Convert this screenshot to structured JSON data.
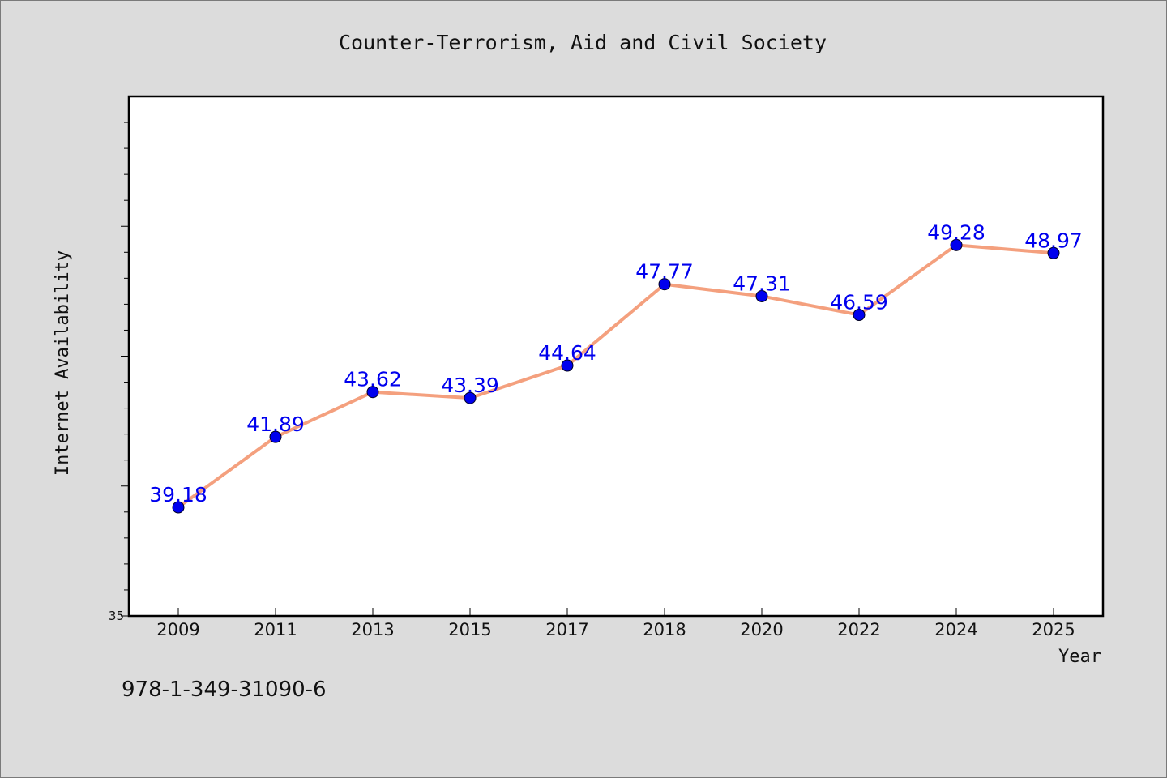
{
  "chart_data": {
    "type": "line",
    "title": "Counter-Terrorism, Aid and Civil Society",
    "xlabel": "Year",
    "ylabel": "Internet Availability",
    "categories": [
      "2009",
      "2011",
      "2013",
      "2015",
      "2017",
      "2018",
      "2020",
      "2022",
      "2024",
      "2025"
    ],
    "series": [
      {
        "values": [
          39.18,
          41.89,
          43.62,
          43.39,
          44.64,
          47.77,
          47.31,
          46.59,
          49.28,
          48.97
        ],
        "data_labels": [
          "39.18",
          "41.89",
          "43.62",
          "43.39",
          "44.64",
          "47.77",
          "47.31",
          "46.59",
          "49.28",
          "48.97"
        ],
        "line_color": "#f4a07e",
        "marker_color": "#0000ee"
      }
    ],
    "ylim": [
      35,
      55
    ],
    "ytick_labels": [
      "35"
    ],
    "grid": false,
    "legend": "none",
    "label_color": "#0000ee"
  },
  "footer": {
    "isbn": "978-1-349-31090-6"
  },
  "colors": {
    "background": "#dcdcdc",
    "plot_background": "#ffffff",
    "axis": "#000000"
  }
}
